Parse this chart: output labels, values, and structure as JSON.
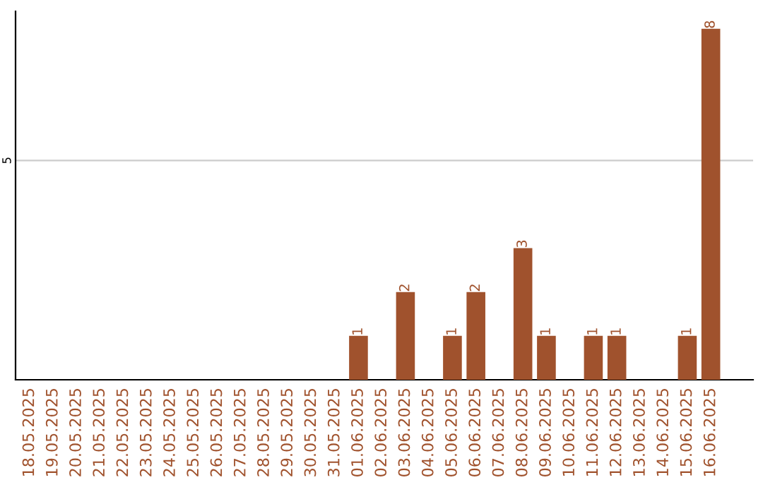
{
  "chart_data": {
    "type": "bar",
    "categories": [
      "18.05.2025",
      "19.05.2025",
      "20.05.2025",
      "21.05.2025",
      "22.05.2025",
      "23.05.2025",
      "24.05.2025",
      "25.05.2025",
      "26.05.2025",
      "27.05.2025",
      "28.05.2025",
      "29.05.2025",
      "30.05.2025",
      "31.05.2025",
      "01.06.2025",
      "02.06.2025",
      "03.06.2025",
      "04.06.2025",
      "05.06.2025",
      "06.06.2025",
      "07.06.2025",
      "08.06.2025",
      "09.06.2025",
      "10.06.2025",
      "11.06.2025",
      "12.06.2025",
      "13.06.2025",
      "14.06.2025",
      "15.06.2025",
      "16.06.2025"
    ],
    "values": [
      null,
      null,
      null,
      null,
      null,
      null,
      null,
      null,
      null,
      null,
      null,
      null,
      null,
      null,
      1,
      null,
      2,
      null,
      1,
      2,
      null,
      3,
      1,
      null,
      1,
      1,
      null,
      null,
      1,
      8
    ],
    "data_labels": true,
    "color": "#a0522d",
    "ylim": [
      0,
      8.4
    ],
    "ref_lines": [
      {
        "axis": "y",
        "value": 5,
        "label": "5",
        "color": "#cccccc"
      }
    ]
  }
}
